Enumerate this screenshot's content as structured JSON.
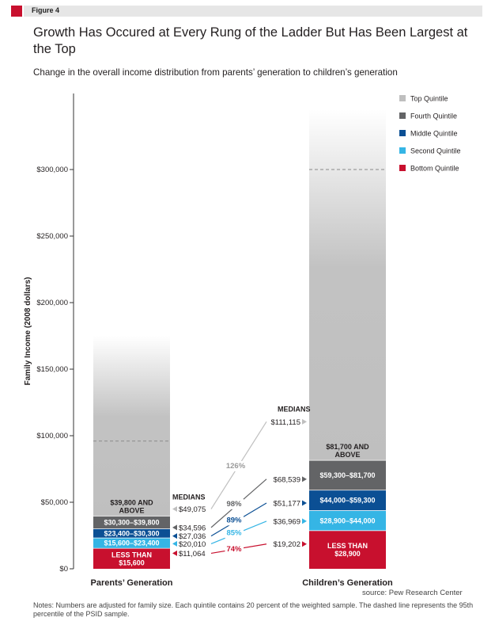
{
  "figure": {
    "tag": "Figure 4",
    "title": "Growth Has Occured at Every Rung of the Ladder But Has Been Largest at the Top",
    "subtitle": "Change in the overall income distribution from parents’ generation to children’s generation",
    "source": "source: Pew Research Center",
    "notes": "Notes: Numbers are adjusted for family size. Each quintile contains 20 percent of the weighted sample. The dashed line represents the 95th percentile of the PSID sample."
  },
  "colors": {
    "tag": "#c8102e",
    "top": "#bfbfbf",
    "fourth": "#636466",
    "middle": "#0b4f94",
    "second": "#35b5e5",
    "bottom": "#c8102e",
    "axis": "#333333"
  },
  "chart_data": {
    "type": "bar",
    "ylabel": "Family Income (2008 dollars)",
    "ylim": [
      0,
      345000
    ],
    "yticks": [
      0,
      50000,
      100000,
      150000,
      200000,
      250000,
      300000
    ],
    "ytick_labels": [
      "$0",
      "$50,000",
      "$100,000",
      "$150,000",
      "$200,000",
      "$250,000",
      "$300,000"
    ],
    "legend_position": "top-right",
    "legend": [
      {
        "name": "Top Quintile",
        "color": "#bfbfbf"
      },
      {
        "name": "Fourth Quintile",
        "color": "#636466"
      },
      {
        "name": "Middle Quintile",
        "color": "#0b4f94"
      },
      {
        "name": "Second Quintile",
        "color": "#35b5e5"
      },
      {
        "name": "Bottom Quintile",
        "color": "#c8102e"
      }
    ],
    "medians_label": "MEDIANS",
    "bars": [
      {
        "name": "Parents’ Generation",
        "top_fade_to": 175000,
        "p95": 96000,
        "segments": [
          {
            "quintile": "Bottom Quintile",
            "from": 0,
            "to": 15600,
            "label": "LESS THAN $15,600",
            "color": "#c8102e"
          },
          {
            "quintile": "Second Quintile",
            "from": 15600,
            "to": 23400,
            "label": "$15,600–$23,400",
            "color": "#35b5e5"
          },
          {
            "quintile": "Middle Quintile",
            "from": 23400,
            "to": 30300,
            "label": "$23,400–$30,300",
            "color": "#0b4f94"
          },
          {
            "quintile": "Fourth Quintile",
            "from": 30300,
            "to": 39800,
            "label": "$30,300–$39,800",
            "color": "#636466"
          },
          {
            "quintile": "Top Quintile",
            "from": 39800,
            "to": 175000,
            "label": "$39,800 AND ABOVE",
            "color": "#bfbfbf"
          }
        ],
        "medians": [
          {
            "quintile": "Bottom Quintile",
            "value": 11064,
            "label": "$11,064"
          },
          {
            "quintile": "Second Quintile",
            "value": 20010,
            "label": "$20,010"
          },
          {
            "quintile": "Middle Quintile",
            "value": 27036,
            "label": "$27,036"
          },
          {
            "quintile": "Fourth Quintile",
            "value": 34596,
            "label": "$34,596"
          },
          {
            "quintile": "Top Quintile",
            "value": 49075,
            "label": "$49,075"
          }
        ]
      },
      {
        "name": "Children’s Generation",
        "top_fade_to": 345000,
        "p95": 300000,
        "segments": [
          {
            "quintile": "Bottom Quintile",
            "from": 0,
            "to": 28900,
            "label": "LESS THAN $28,900",
            "color": "#c8102e"
          },
          {
            "quintile": "Second Quintile",
            "from": 28900,
            "to": 44000,
            "label": "$28,900–$44,000",
            "color": "#35b5e5"
          },
          {
            "quintile": "Middle Quintile",
            "from": 44000,
            "to": 59300,
            "label": "$44,000–$59,300",
            "color": "#0b4f94"
          },
          {
            "quintile": "Fourth Quintile",
            "from": 59300,
            "to": 81700,
            "label": "$59,300–$81,700",
            "color": "#636466"
          },
          {
            "quintile": "Top Quintile",
            "from": 81700,
            "to": 345000,
            "label": "$81,700 AND ABOVE",
            "color": "#bfbfbf"
          }
        ],
        "medians": [
          {
            "quintile": "Bottom Quintile",
            "value": 19202,
            "label": "$19,202"
          },
          {
            "quintile": "Second Quintile",
            "value": 36969,
            "label": "$36,969"
          },
          {
            "quintile": "Middle Quintile",
            "value": 51177,
            "label": "$51,177"
          },
          {
            "quintile": "Fourth Quintile",
            "value": 68539,
            "label": "$68,539"
          },
          {
            "quintile": "Top Quintile",
            "value": 111115,
            "label": "$111,115"
          }
        ]
      }
    ],
    "growth": [
      {
        "quintile": "Bottom Quintile",
        "label": "74%",
        "color": "#c8102e"
      },
      {
        "quintile": "Second Quintile",
        "label": "85%",
        "color": "#35b5e5"
      },
      {
        "quintile": "Middle Quintile",
        "label": "89%",
        "color": "#0b4f94"
      },
      {
        "quintile": "Fourth Quintile",
        "label": "98%",
        "color": "#636466"
      },
      {
        "quintile": "Top Quintile",
        "label": "126%",
        "color": "#bfbfbf"
      }
    ]
  }
}
